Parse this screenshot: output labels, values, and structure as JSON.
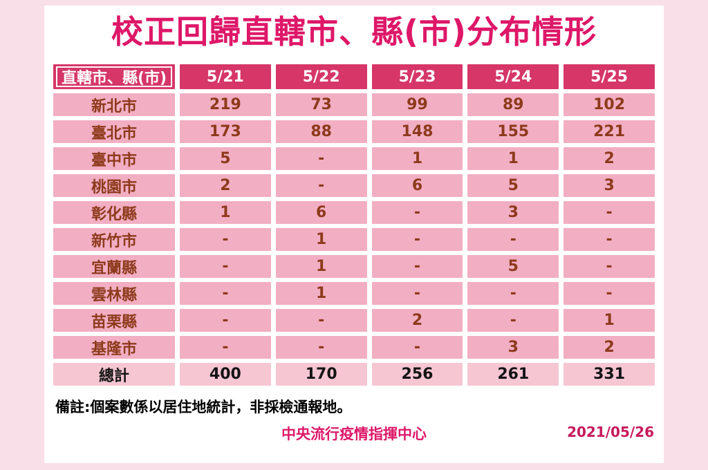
{
  "page": {
    "title": "校正回歸直轄市、縣(市)分布情形",
    "note": "備註:個案數係以居住地統計，非採檢通報地。",
    "source": "中央流行疫情指揮中心",
    "report_date": "2021/05/26"
  },
  "colors": {
    "page_background": "#f9dfe8",
    "card_background": "#ffffff",
    "title_text": "#de1768",
    "header_cell_background": "#d63668",
    "header_cell_text": "#ffffff",
    "data_cell_background": "#f2aec3",
    "data_cell_text": "#8d3a1b",
    "total_row_background": "#f6c6d3",
    "total_row_text": "#141414",
    "date_text": "#c81a5c"
  },
  "chart_data": {
    "type": "table",
    "title": "校正回歸直轄市、縣(市)分布情形",
    "columns": [
      "直轄市、縣(市)",
      "5/21",
      "5/22",
      "5/23",
      "5/24",
      "5/25"
    ],
    "rows": [
      {
        "region": "新北市",
        "values": [
          "219",
          "73",
          "99",
          "89",
          "102"
        ],
        "is_total": false
      },
      {
        "region": "臺北市",
        "values": [
          "173",
          "88",
          "148",
          "155",
          "221"
        ],
        "is_total": false
      },
      {
        "region": "臺中市",
        "values": [
          "5",
          "-",
          "1",
          "1",
          "2"
        ],
        "is_total": false
      },
      {
        "region": "桃園市",
        "values": [
          "2",
          "-",
          "6",
          "5",
          "3"
        ],
        "is_total": false
      },
      {
        "region": "彰化縣",
        "values": [
          "1",
          "6",
          "-",
          "3",
          "-"
        ],
        "is_total": false
      },
      {
        "region": "新竹市",
        "values": [
          "-",
          "1",
          "-",
          "-",
          "-"
        ],
        "is_total": false
      },
      {
        "region": "宜蘭縣",
        "values": [
          "-",
          "1",
          "-",
          "5",
          "-"
        ],
        "is_total": false
      },
      {
        "region": "雲林縣",
        "values": [
          "-",
          "1",
          "-",
          "-",
          "-"
        ],
        "is_total": false
      },
      {
        "region": "苗栗縣",
        "values": [
          "-",
          "-",
          "2",
          "-",
          "1"
        ],
        "is_total": false
      },
      {
        "region": "基隆市",
        "values": [
          "-",
          "-",
          "-",
          "3",
          "2"
        ],
        "is_total": false
      },
      {
        "region": "總計",
        "values": [
          "400",
          "170",
          "256",
          "261",
          "331"
        ],
        "is_total": true
      }
    ]
  }
}
